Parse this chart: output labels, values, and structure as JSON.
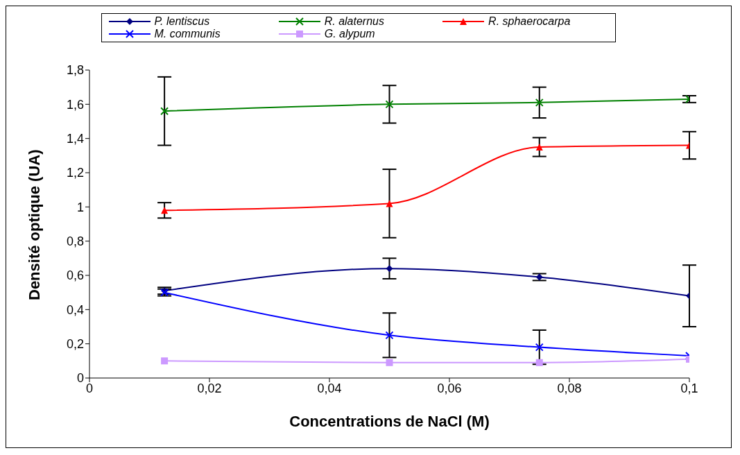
{
  "chart_data": {
    "type": "line",
    "xlabel": "Concentrations de  NaCl (M)",
    "ylabel": "Densité optique (UA)",
    "x": [
      0.0125,
      0.05,
      0.075,
      0.1
    ],
    "series": [
      {
        "name": "P. lentiscus",
        "color": "#000080",
        "marker": "diamond",
        "values": [
          0.51,
          0.64,
          0.59,
          0.48
        ],
        "errors": [
          0.02,
          0.06,
          0.02,
          0.18
        ]
      },
      {
        "name": "R. alaternus",
        "color": "#008000",
        "marker": "cross",
        "values": [
          1.56,
          1.6,
          1.61,
          1.63
        ],
        "errors": [
          0.2,
          0.11,
          0.09,
          0.02
        ]
      },
      {
        "name": "R. sphaerocarpa",
        "color": "#ff0000",
        "marker": "triangle",
        "values": [
          0.98,
          1.02,
          1.35,
          1.36
        ],
        "errors": [
          0.045,
          0.2,
          0.055,
          0.08
        ]
      },
      {
        "name": "M. communis",
        "color": "#0000ff",
        "marker": "cross",
        "values": [
          0.5,
          0.25,
          0.18,
          0.13
        ],
        "errors": [
          0.02,
          0.13,
          0.1,
          null
        ]
      },
      {
        "name": "G. alypum",
        "color": "#cc99ff",
        "marker": "square",
        "values": [
          0.1,
          0.09,
          0.09,
          0.11
        ],
        "errors": [
          null,
          null,
          null,
          null
        ]
      }
    ],
    "xlim": [
      0,
      0.1
    ],
    "xticks": [
      0,
      {
        "value": 0.02,
        "label": "0,02"
      },
      {
        "value": 0.04,
        "label": "0,04"
      },
      {
        "value": 0.06,
        "label": "0,06"
      },
      {
        "value": 0.08,
        "label": "0,08"
      },
      {
        "value": 0.1,
        "label": "0,1"
      }
    ],
    "ylim": [
      0,
      1.8
    ],
    "yticks": [
      0,
      {
        "value": 0.2,
        "label": "0,2"
      },
      {
        "value": 0.4,
        "label": "0,4"
      },
      {
        "value": 0.6,
        "label": "0,6"
      },
      {
        "value": 0.8,
        "label": "0,8"
      },
      1,
      {
        "value": 1.2,
        "label": "1,2"
      },
      {
        "value": 1.4,
        "label": "1,4"
      },
      {
        "value": 1.6,
        "label": "1,6"
      },
      {
        "value": 1.8,
        "label": "1,8"
      }
    ],
    "grid": false,
    "legend": "top"
  }
}
